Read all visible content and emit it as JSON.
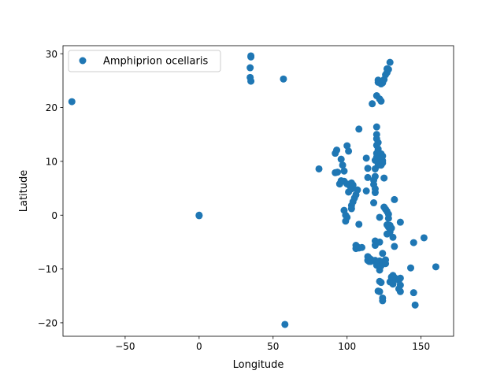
{
  "chart_data": {
    "type": "scatter",
    "title": "",
    "xlabel": "Longitude",
    "ylabel": "Latitude",
    "xlim": [
      -92,
      172
    ],
    "ylim": [
      -22.5,
      31.5
    ],
    "xticks": [
      -50,
      0,
      50,
      100,
      150
    ],
    "xtick_labels": [
      "−50",
      "0",
      "50",
      "100",
      "150"
    ],
    "yticks": [
      -20,
      -10,
      0,
      10,
      20,
      30
    ],
    "ytick_labels": [
      "−20",
      "−10",
      "0",
      "10",
      "20",
      "30"
    ],
    "grid": false,
    "legend_position": "top-left",
    "series": [
      {
        "name": "Amphiprion ocellaris",
        "color": "#1f77b4",
        "points": [
          [
            -86,
            21.1
          ],
          [
            0,
            0
          ],
          [
            0,
            -0.1
          ],
          [
            35,
            29.6
          ],
          [
            35,
            29.4
          ],
          [
            34.5,
            27.4
          ],
          [
            34.5,
            25.6
          ],
          [
            35,
            24.9
          ],
          [
            57,
            25.3
          ],
          [
            58,
            -20.3
          ],
          [
            81,
            8.6
          ],
          [
            92,
            11.5
          ],
          [
            93,
            12.1
          ],
          [
            92,
            7.9
          ],
          [
            93.5,
            8
          ],
          [
            95,
            5.8
          ],
          [
            96,
            6.4
          ],
          [
            96,
            10.4
          ],
          [
            97,
            9.3
          ],
          [
            98,
            8.2
          ],
          [
            98,
            6.3
          ],
          [
            98,
            0.9
          ],
          [
            99,
            0
          ],
          [
            99,
            -1.1
          ],
          [
            100,
            -0.4
          ],
          [
            100,
            12.9
          ],
          [
            101,
            11.9
          ],
          [
            100,
            5.8
          ],
          [
            101,
            4.3
          ],
          [
            102,
            5.4
          ],
          [
            103,
            4.9
          ],
          [
            103,
            6
          ],
          [
            104,
            5.6
          ],
          [
            103,
            1.8
          ],
          [
            103,
            1.2
          ],
          [
            104,
            2.5
          ],
          [
            105,
            3.2
          ],
          [
            106,
            3.8
          ],
          [
            107,
            4.7
          ],
          [
            106,
            -5.6
          ],
          [
            106,
            -6.2
          ],
          [
            107,
            -5.9
          ],
          [
            108,
            -6.1
          ],
          [
            108,
            -1.7
          ],
          [
            110,
            -6
          ],
          [
            108,
            16
          ],
          [
            113,
            10.6
          ],
          [
            113,
            4.5
          ],
          [
            114,
            7
          ],
          [
            114,
            8.7
          ],
          [
            114,
            -7.7
          ],
          [
            114,
            -8.4
          ],
          [
            115,
            -8
          ],
          [
            115,
            -8.6
          ],
          [
            116,
            -8.2
          ],
          [
            116,
            -8.6
          ],
          [
            117,
            20.7
          ],
          [
            118,
            2.3
          ],
          [
            118,
            5.7
          ],
          [
            118,
            6.5
          ],
          [
            119,
            4.2
          ],
          [
            119,
            4.9
          ],
          [
            119,
            7.2
          ],
          [
            119,
            8.6
          ],
          [
            119,
            10.2
          ],
          [
            119,
            -4.8
          ],
          [
            119,
            -5.6
          ],
          [
            119,
            -8.4
          ],
          [
            120,
            -8.8
          ],
          [
            120,
            -9.3
          ],
          [
            120,
            16.4
          ],
          [
            120,
            15
          ],
          [
            120,
            14.2
          ],
          [
            120,
            13
          ],
          [
            120,
            11.5
          ],
          [
            120,
            10.8
          ],
          [
            121,
            13.5
          ],
          [
            121,
            12.3
          ],
          [
            121,
            11.8
          ],
          [
            121,
            10.7
          ],
          [
            121,
            9.9
          ],
          [
            121,
            9.3
          ],
          [
            120,
            22.2
          ],
          [
            121,
            24.7
          ],
          [
            121,
            25.1
          ],
          [
            122,
            21.6
          ],
          [
            123,
            24.4
          ],
          [
            123,
            21.2
          ],
          [
            124,
            24.6
          ],
          [
            125,
            25.2
          ],
          [
            122,
            11
          ],
          [
            122,
            10.2
          ],
          [
            123,
            11.4
          ],
          [
            123,
            10.6
          ],
          [
            123,
            9.3
          ],
          [
            124,
            10.1
          ],
          [
            124,
            11
          ],
          [
            124,
            9.7
          ],
          [
            122,
            -0.4
          ],
          [
            122,
            -5
          ],
          [
            122,
            -8.5
          ],
          [
            122,
            -10.2
          ],
          [
            122,
            -12.3
          ],
          [
            121,
            -14.1
          ],
          [
            122,
            -14.2
          ],
          [
            123,
            -12.5
          ],
          [
            124,
            -15.9
          ],
          [
            124,
            -15.4
          ],
          [
            123,
            -9.4
          ],
          [
            124,
            -8.8
          ],
          [
            124,
            -7.1
          ],
          [
            125,
            6.9
          ],
          [
            125,
            1.5
          ],
          [
            126,
            1.1
          ],
          [
            126,
            -8.3
          ],
          [
            126,
            -9
          ],
          [
            126,
            26.1
          ],
          [
            127,
            26.5
          ],
          [
            127,
            27.2
          ],
          [
            128,
            27.1
          ],
          [
            129,
            28.4
          ],
          [
            127,
            0.7
          ],
          [
            127,
            -1.8
          ],
          [
            127,
            -3.5
          ],
          [
            128,
            -0.6
          ],
          [
            128,
            0.2
          ],
          [
            128,
            -2.2
          ],
          [
            129,
            -3.1
          ],
          [
            129,
            -1.9
          ],
          [
            130,
            -2.4
          ],
          [
            129,
            -12.4
          ],
          [
            130,
            -12
          ],
          [
            130,
            -11.5
          ],
          [
            131,
            -11.2
          ],
          [
            131,
            -12.8
          ],
          [
            131,
            -4.1
          ],
          [
            132,
            2.9
          ],
          [
            132,
            -5.8
          ],
          [
            132,
            -11.6
          ],
          [
            133,
            -11.8
          ],
          [
            135,
            -12.1
          ],
          [
            135,
            -13.7
          ],
          [
            136,
            -13
          ],
          [
            136,
            -11.7
          ],
          [
            136,
            -14.2
          ],
          [
            136,
            -1.3
          ],
          [
            143,
            -9.8
          ],
          [
            145,
            -5.1
          ],
          [
            145,
            -14.4
          ],
          [
            146,
            -16.7
          ],
          [
            152,
            -4.2
          ],
          [
            160,
            -9.6
          ]
        ]
      }
    ]
  }
}
